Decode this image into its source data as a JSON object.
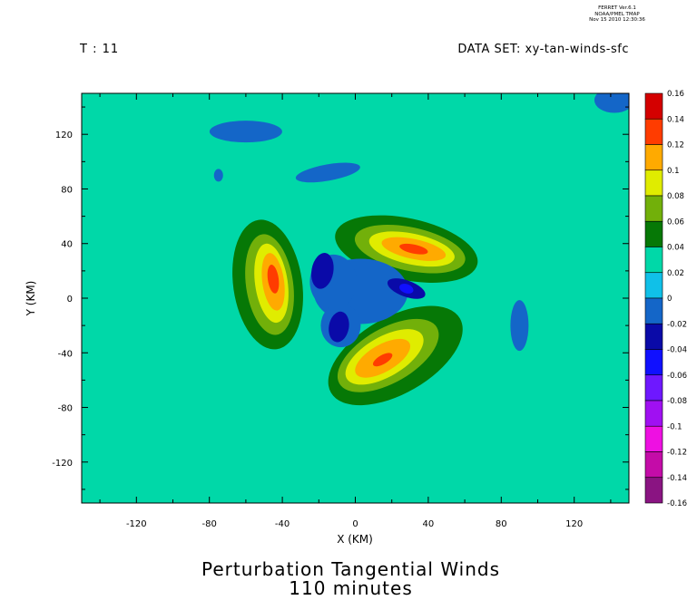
{
  "header": {
    "software_line1": "FERRET Ver.6.1",
    "software_line2": "NOAA/PMEL TMAP",
    "timestamp": "Nov 15 2010 12:30:36"
  },
  "time_label": "T : 11",
  "dataset_label": "DATA SET: xy-tan-winds-sfc",
  "chart_data": {
    "type": "heatmap",
    "title": "Perturbation Tangential Winds",
    "subtitle": "110 minutes",
    "xlabel": "X (KM)",
    "ylabel": "Y (KM)",
    "xlim": [
      -150,
      150
    ],
    "ylim": [
      -150,
      150
    ],
    "x_ticks": [
      -120,
      -80,
      -40,
      0,
      40,
      80,
      120
    ],
    "y_ticks": [
      -120,
      -80,
      -40,
      0,
      40,
      80,
      120
    ],
    "grid": false,
    "colorbar": {
      "placement": "right",
      "levels": [
        -0.16,
        -0.14,
        -0.12,
        -0.1,
        -0.08,
        -0.06,
        -0.04,
        -0.02,
        0,
        0.02,
        0.04,
        0.06,
        0.08,
        0.1,
        0.12,
        0.14,
        0.16
      ],
      "tick_labels": [
        "-0.16",
        "-0.14",
        "-0.12",
        "-0.1",
        "-0.08",
        "-0.06",
        "-0.04",
        "-0.02",
        "0",
        "0.02",
        "0.04",
        "0.06",
        "0.08",
        "0.1",
        "0.12",
        "0.14",
        "0.16"
      ],
      "colors": [
        "#4a0a3c",
        "#8a1482",
        "#c40ca8",
        "#ee10e2",
        "#a010f2",
        "#6e18ff",
        "#1010ff",
        "#0a0aa8",
        "#1466c8",
        "#10c0e8",
        "#00d8a8",
        "#067806",
        "#72b00a",
        "#e0ec00",
        "#ffaa00",
        "#ff3c00",
        "#d40000",
        "#6e0000"
      ]
    },
    "background_value": 0,
    "features": [
      {
        "kind": "region",
        "value": 0.03,
        "cx": -10,
        "cy": 5,
        "r": 100
      },
      {
        "kind": "region",
        "value": 0.05,
        "cx": -50,
        "cy": 8,
        "r": 38
      },
      {
        "kind": "region",
        "value": 0.05,
        "cx": 30,
        "cy": 38,
        "r": 40
      },
      {
        "kind": "region",
        "value": 0.05,
        "cx": 25,
        "cy": -45,
        "r": 45
      },
      {
        "kind": "maximum",
        "value": 0.14,
        "cx": -45,
        "cy": 15
      },
      {
        "kind": "maximum",
        "value": 0.14,
        "cx": 32,
        "cy": 36
      },
      {
        "kind": "maximum",
        "value": 0.14,
        "cx": 15,
        "cy": -45
      },
      {
        "kind": "minimum",
        "value": -0.05,
        "cx": -18,
        "cy": 20
      },
      {
        "kind": "minimum",
        "value": -0.06,
        "cx": 28,
        "cy": 7
      },
      {
        "kind": "minimum",
        "value": -0.05,
        "cx": -8,
        "cy": -22
      },
      {
        "kind": "minimum",
        "value": -0.01,
        "cx": -60,
        "cy": 120
      },
      {
        "kind": "minimum",
        "value": -0.01,
        "cx": 90,
        "cy": -20
      }
    ]
  }
}
